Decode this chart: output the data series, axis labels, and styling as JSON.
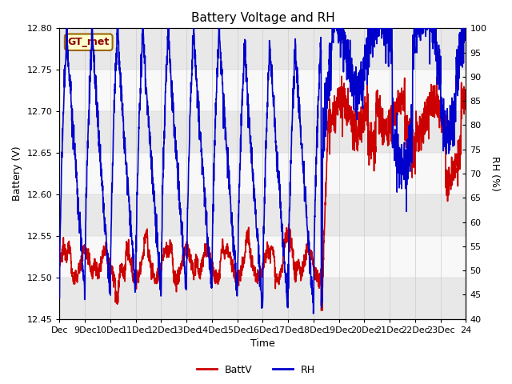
{
  "title": "Battery Voltage and RH",
  "xlabel": "Time",
  "ylabel_left": "Battery (V)",
  "ylabel_right": "RH (%)",
  "x_tick_labels": [
    "Dec",
    "9Dec",
    "10Dec",
    "11Dec",
    "12Dec",
    "13Dec",
    "14Dec",
    "15Dec",
    "16Dec",
    "17Dec",
    "18Dec",
    "19Dec",
    "20Dec",
    "21Dec",
    "22Dec",
    "23Dec",
    "24"
  ],
  "ylim_left": [
    12.45,
    12.8
  ],
  "ylim_right": [
    40,
    100
  ],
  "yticks_left": [
    12.45,
    12.5,
    12.55,
    12.6,
    12.65,
    12.7,
    12.75,
    12.8
  ],
  "yticks_right": [
    40,
    45,
    50,
    55,
    60,
    65,
    70,
    75,
    80,
    85,
    90,
    95,
    100
  ],
  "batt_color": "#cc0000",
  "rh_color": "#0000cc",
  "label_box_facecolor": "#ffffcc",
  "label_box_edgecolor": "#996600",
  "label_text": "GT_met",
  "legend_labels": [
    "BattV",
    "RH"
  ],
  "background_color": "#ffffff",
  "hband_colors": [
    "#e8e8e8",
    "#f8f8f8"
  ],
  "title_fontsize": 11,
  "axis_fontsize": 9,
  "tick_fontsize": 8,
  "legend_fontsize": 9,
  "linewidth": 1.2
}
